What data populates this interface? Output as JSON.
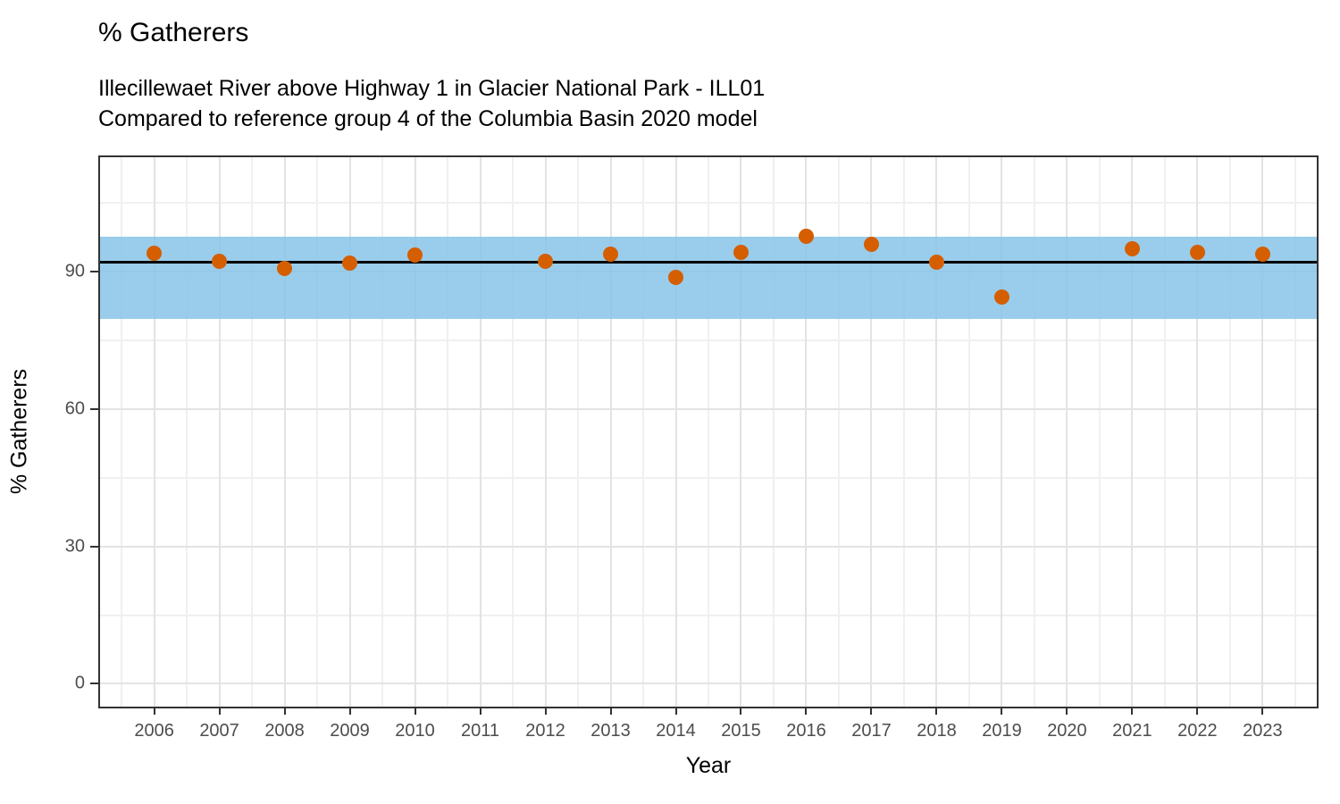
{
  "title": "% Gatherers",
  "subtitle": {
    "line1": "Illecillewaet River above Highway 1 in Glacier National Park - ILL01",
    "line2": "Compared to reference group 4 of the Columbia Basin 2020 model"
  },
  "chart_data": {
    "type": "scatter",
    "title": "% Gatherers",
    "subtitle": "Illecillewaet River above Highway 1 in Glacier National Park - ILL01 / Compared to reference group 4 of the Columbia Basin 2020 model",
    "xlabel": "Year",
    "ylabel": "% Gatherers",
    "xlim": [
      2005.17,
      2023.83
    ],
    "ylim": [
      -5,
      115
    ],
    "x_ticks": [
      2006,
      2007,
      2008,
      2009,
      2010,
      2011,
      2012,
      2013,
      2014,
      2015,
      2016,
      2017,
      2018,
      2019,
      2020,
      2021,
      2022,
      2023
    ],
    "y_ticks": [
      0,
      30,
      60,
      90
    ],
    "y_minor_ticks": [
      15,
      45,
      75,
      105
    ],
    "grid": "major-and-minor",
    "legend_position": "none",
    "points": [
      {
        "x": 2006,
        "y": 94.1
      },
      {
        "x": 2007,
        "y": 92.3
      },
      {
        "x": 2008,
        "y": 90.8
      },
      {
        "x": 2009,
        "y": 91.9
      },
      {
        "x": 2010,
        "y": 93.7
      },
      {
        "x": 2012,
        "y": 92.3
      },
      {
        "x": 2013,
        "y": 93.9
      },
      {
        "x": 2014,
        "y": 88.8
      },
      {
        "x": 2015,
        "y": 94.3
      },
      {
        "x": 2016,
        "y": 97.8
      },
      {
        "x": 2017,
        "y": 96.0
      },
      {
        "x": 2018,
        "y": 92.1
      },
      {
        "x": 2019,
        "y": 84.5
      },
      {
        "x": 2021,
        "y": 95.0
      },
      {
        "x": 2022,
        "y": 94.3
      },
      {
        "x": 2023,
        "y": 93.9
      }
    ],
    "reference_line": {
      "value": 92.1,
      "color": "#000000"
    },
    "reference_band": {
      "lower": 79.7,
      "upper": 97.7,
      "color": "#87C4E8"
    },
    "colors": {
      "point": "#D55E00",
      "band": "#87C4E8",
      "reference_line": "#000000",
      "grid_major": "#e3e3e3",
      "grid_minor": "#f0f0f0",
      "panel_border": "#333333",
      "tick_label": "#4d4d4d"
    }
  }
}
